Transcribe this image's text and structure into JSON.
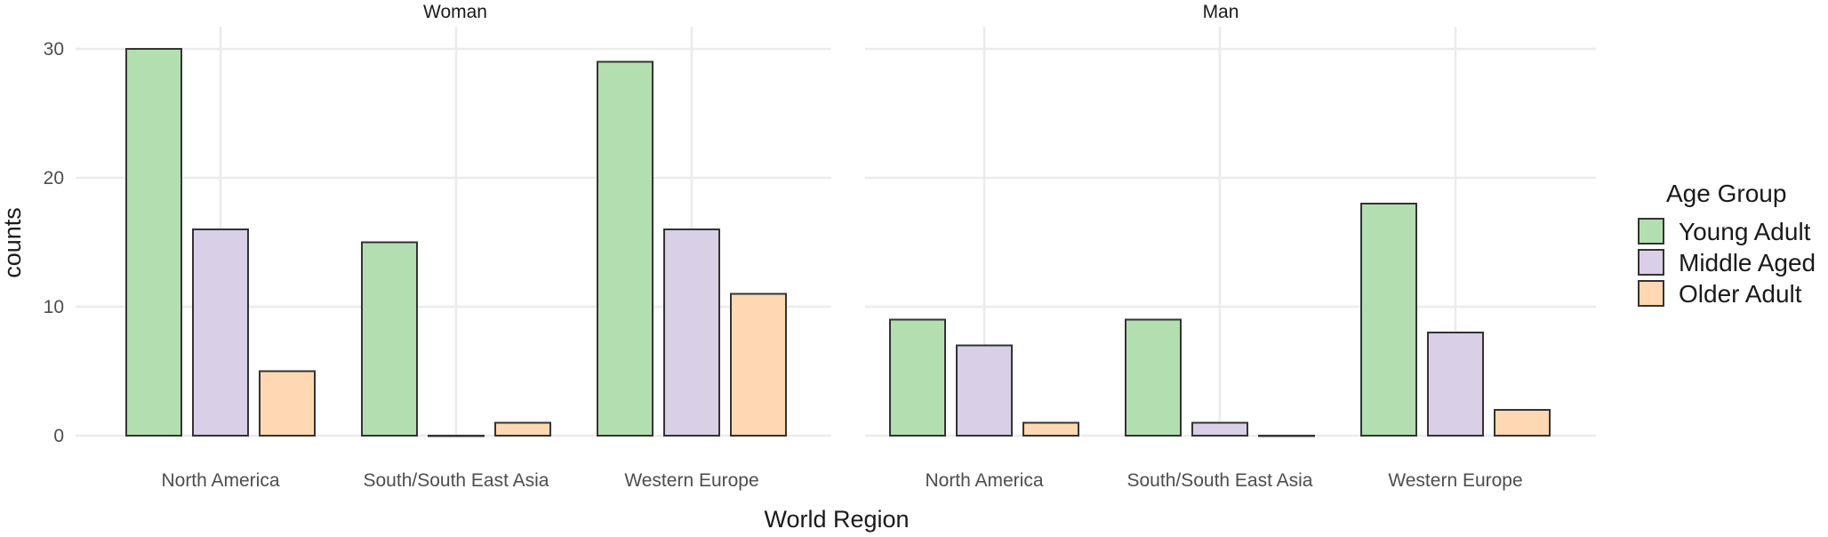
{
  "chart_data": {
    "type": "bar",
    "facet_labels": [
      "Woman",
      "Man"
    ],
    "categories": [
      "North America",
      "South/South East Asia",
      "Western Europe"
    ],
    "series_colors": [
      "#b3dfb0",
      "#d9cfe6",
      "#fdd8b2"
    ],
    "ylim": [
      0,
      30
    ],
    "yticks": [
      0,
      10,
      20,
      30
    ],
    "xlabel": "World Region",
    "ylabel": "counts",
    "legend": {
      "title": "Age Group",
      "position": "right",
      "entries": [
        "Young Adult",
        "Middle Aged",
        "Older Adult"
      ]
    },
    "facets": [
      {
        "label": "Woman",
        "series": [
          {
            "name": "Young Adult",
            "values": [
              30,
              15,
              29
            ]
          },
          {
            "name": "Middle Aged",
            "values": [
              16,
              0,
              16
            ]
          },
          {
            "name": "Older Adult",
            "values": [
              5,
              1,
              11
            ]
          }
        ]
      },
      {
        "label": "Man",
        "series": [
          {
            "name": "Young Adult",
            "values": [
              9,
              9,
              18
            ]
          },
          {
            "name": "Middle Aged",
            "values": [
              7,
              1,
              8
            ]
          },
          {
            "name": "Older Adult",
            "values": [
              1,
              0,
              2
            ]
          }
        ]
      }
    ],
    "grid": true
  }
}
